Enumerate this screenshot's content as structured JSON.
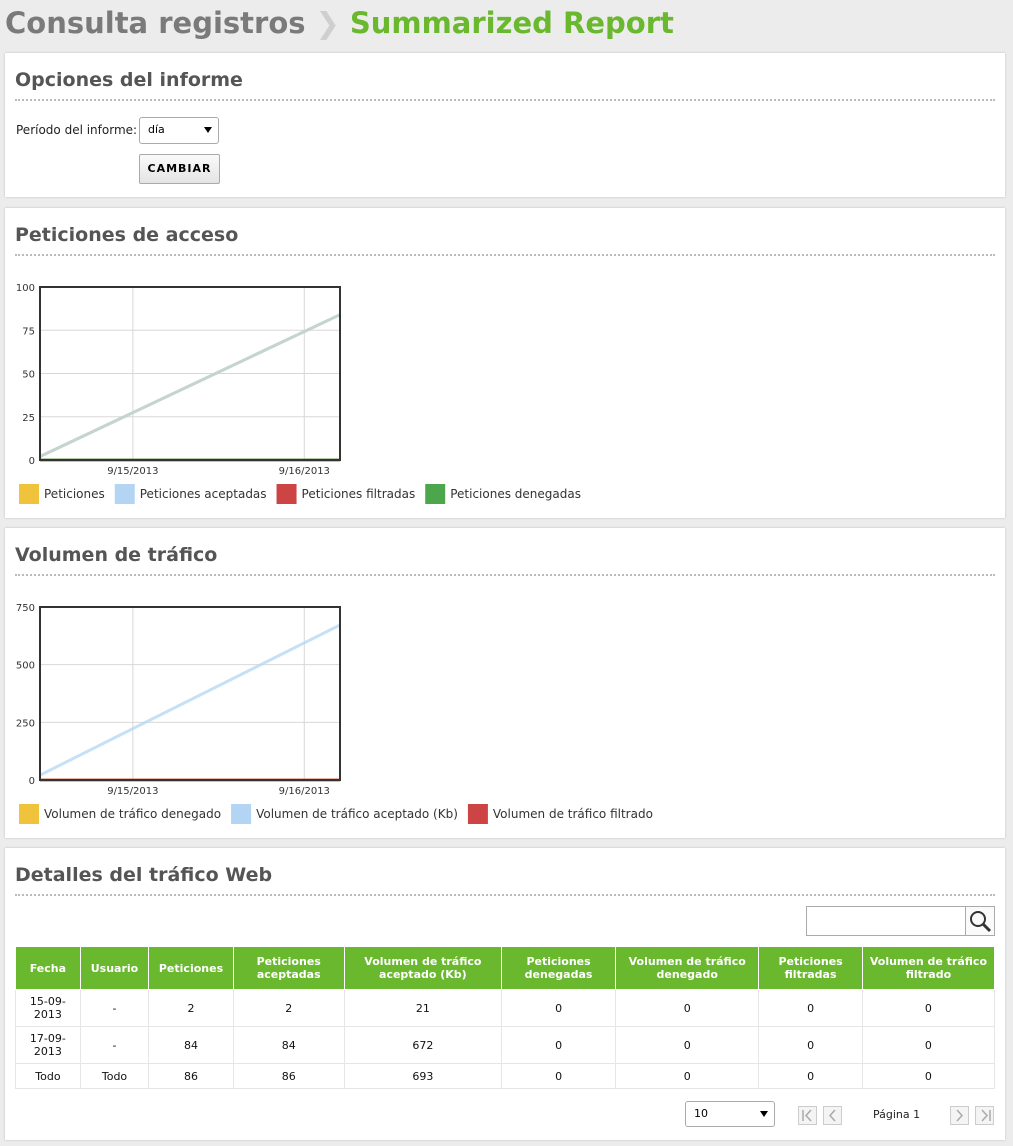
{
  "header": {
    "section": "Consulta registros",
    "page": "Summarized Report"
  },
  "options": {
    "title": "Opciones del informe",
    "period_label": "Período del informe:",
    "period_value": "día",
    "button": "CAMBIAR"
  },
  "chart_data": [
    {
      "type": "line",
      "title": "Peticiones de acceso",
      "xlim": [
        "2013-09-14T11:00",
        "2013-09-16T05:00"
      ],
      "xticks": [
        {
          "value": "2013-09-15T00:00",
          "label": "9/15/2013"
        },
        {
          "value": "2013-09-16T00:00",
          "label": "9/16/2013"
        }
      ],
      "ylim": [
        0,
        100
      ],
      "yticks": [
        0,
        25,
        50,
        75,
        100
      ],
      "grid": true,
      "x": [
        "2013-09-14T11:00",
        "2013-09-16T05:00"
      ],
      "series": [
        {
          "name": "Peticiones",
          "color": "#f0c33c",
          "values": [
            2,
            84
          ]
        },
        {
          "name": "Peticiones aceptadas",
          "color": "#b3d5f3",
          "values": [
            2,
            84
          ]
        },
        {
          "name": "Peticiones filtradas",
          "color": "#cc4444",
          "values": [
            0,
            0
          ]
        },
        {
          "name": "Peticiones denegadas",
          "color": "#4ca64c",
          "values": [
            0,
            0
          ]
        }
      ]
    },
    {
      "type": "line",
      "title": "Volumen de tráfico",
      "xlim": [
        "2013-09-14T11:00",
        "2013-09-16T05:00"
      ],
      "xticks": [
        {
          "value": "2013-09-15T00:00",
          "label": "9/15/2013"
        },
        {
          "value": "2013-09-16T00:00",
          "label": "9/16/2013"
        }
      ],
      "ylim": [
        0,
        750
      ],
      "yticks": [
        0,
        250,
        500,
        750
      ],
      "grid": true,
      "x": [
        "2013-09-14T11:00",
        "2013-09-16T05:00"
      ],
      "series": [
        {
          "name": "Volumen de tráfico denegado",
          "color": "#f0c33c",
          "values": [
            0,
            0
          ]
        },
        {
          "name": "Volumen de tráfico aceptado (Kb)",
          "color": "#b3d5f3",
          "values": [
            21,
            672
          ]
        },
        {
          "name": "Volumen de tráfico filtrado",
          "color": "#cc4444",
          "values": [
            0,
            0
          ]
        }
      ]
    }
  ],
  "table": {
    "title": "Detalles del tráfico Web",
    "columns": [
      "Fecha",
      "Usuario",
      "Peticiones",
      "Peticiones aceptadas",
      "Volumen de tráfico aceptado (Kb)",
      "Peticiones denegadas",
      "Volumen de tráfico denegado",
      "Peticiones filtradas",
      "Volumen de tráfico filtrado"
    ],
    "rows": [
      [
        "15-09-2013",
        "-",
        2,
        2,
        21,
        0,
        0,
        0,
        0
      ],
      [
        "17-09-2013",
        "-",
        84,
        84,
        672,
        0,
        0,
        0,
        0
      ],
      [
        "Todo",
        "Todo",
        86,
        86,
        693,
        0,
        0,
        0,
        0
      ]
    ]
  },
  "pagination": {
    "page_size": "10",
    "page": "Página 1"
  }
}
